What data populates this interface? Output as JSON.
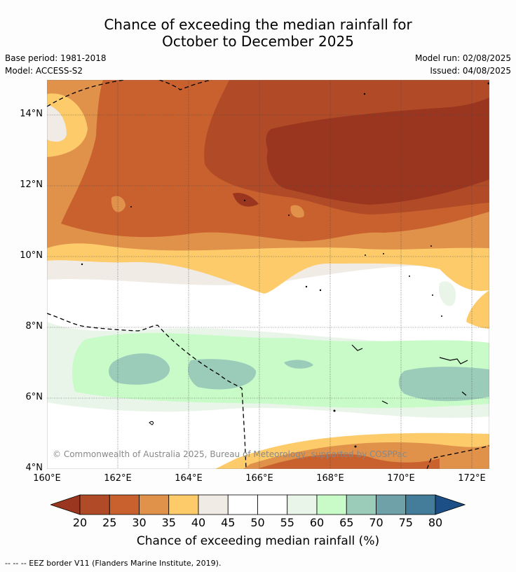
{
  "title_line1": "Chance of exceeding the median rainfall for",
  "title_line2": "October to December 2025",
  "base_period": "Base period: 1981-2018",
  "model": "Model: ACCESS-S2",
  "model_run": "Model run: 02/08/2025",
  "issued": "Issued: 04/08/2025",
  "copyright": "© Commonwealth of Australia 2025, Bureau of Meteorology, supported by COSPPac",
  "lat_labels": [
    "14°N",
    "12°N",
    "10°N",
    "8°N",
    "6°N",
    "4°N"
  ],
  "lon_labels": [
    "160°E",
    "162°E",
    "164°E",
    "166°E",
    "168°E",
    "170°E",
    "172°E"
  ],
  "colorbar": {
    "ticks": [
      "20",
      "25",
      "30",
      "35",
      "40",
      "45",
      "50",
      "55",
      "60",
      "65",
      "70",
      "75",
      "80"
    ],
    "colors": [
      "#b04a27",
      "#c9612f",
      "#e0914a",
      "#fdcb6a",
      "#f1ebe6",
      "#ffffff",
      "#ffffff",
      "#eaf5ea",
      "#c9fbc9",
      "#9bccba",
      "#6fa2a8",
      "#447d9a"
    ],
    "under_color": "#9a3620",
    "over_color": "#1b4f85",
    "label": "Chance of exceeding median rainfall (%)"
  },
  "legend_eez": "--  --  -- EEZ border V11 (Flanders Marine Institute, 2019)."
}
